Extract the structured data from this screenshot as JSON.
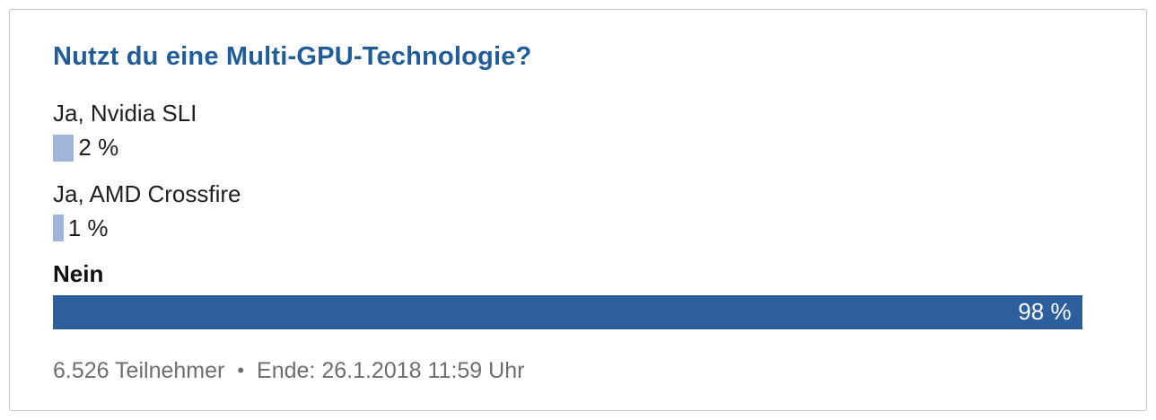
{
  "poll": {
    "title": "Nutzt du eine Multi-GPU-Technologie?",
    "options": [
      {
        "label": "Ja, Nvidia SLI",
        "percent": 2,
        "percent_label": "2 %"
      },
      {
        "label": "Ja, AMD Crossfire",
        "percent": 1,
        "percent_label": "1 %"
      },
      {
        "label": "Nein",
        "percent": 98,
        "percent_label": "98 %"
      }
    ],
    "footer": {
      "participants": "6.526 Teilnehmer",
      "separator": "•",
      "end": "Ende: 26.1.2018 11:59 Uhr"
    },
    "colors": {
      "title": "#1f5c99",
      "bar_small": "#9fb5d9",
      "bar_large": "#2d5f9e",
      "bar_large_text": "#ffffff",
      "footer_text": "#6e6e6e"
    }
  },
  "chart_data": {
    "type": "bar",
    "orientation": "horizontal",
    "title": "Nutzt du eine Multi-GPU-Technologie?",
    "categories": [
      "Ja, Nvidia SLI",
      "Ja, AMD Crossfire",
      "Nein"
    ],
    "values": [
      2,
      1,
      98
    ],
    "unit": "%",
    "xlim": [
      0,
      100
    ],
    "data_labels": [
      "2 %",
      "1 %",
      "98 %"
    ],
    "grid": false,
    "legend": false,
    "footer": "6.526 Teilnehmer • Ende: 26.1.2018 11:59 Uhr"
  }
}
